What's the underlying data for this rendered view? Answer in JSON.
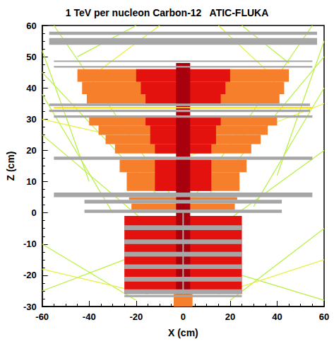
{
  "chart_data": {
    "type": "event_display",
    "title": "1 TeV per nucleon Carbon-12   ATIC-FLUKA",
    "x_label": "X (cm)",
    "y_label": "Z (cm)",
    "xlim": [
      -60,
      60
    ],
    "ylim": [
      -30,
      60
    ],
    "xticks": [
      -60,
      -40,
      -20,
      0,
      20,
      40,
      60
    ],
    "yticks": [
      -30,
      -20,
      -10,
      0,
      10,
      20,
      30,
      40,
      50,
      60
    ],
    "grid": false,
    "series": [
      {
        "type": "track",
        "color": "#b8f040",
        "segments": [
          [
            0,
            0,
            -55,
            60
          ],
          [
            0,
            0,
            55,
            60
          ],
          [
            -5,
            -10,
            -60,
            25
          ],
          [
            5,
            -10,
            60,
            20
          ],
          [
            -10,
            5,
            -60,
            45
          ],
          [
            10,
            5,
            60,
            50
          ],
          [
            -20,
            -28,
            -60,
            -10
          ],
          [
            20,
            -28,
            60,
            -5
          ],
          [
            -25,
            -15,
            -60,
            -25
          ],
          [
            25,
            -20,
            60,
            -28
          ],
          [
            -30,
            0,
            -60,
            38
          ],
          [
            30,
            2,
            60,
            40
          ],
          [
            -40,
            10,
            -60,
            52
          ],
          [
            40,
            12,
            60,
            55
          ],
          [
            -45,
            50,
            -20,
            60
          ],
          [
            45,
            48,
            25,
            60
          ]
        ]
      },
      {
        "type": "track",
        "color": "#e8f040",
        "segments": [
          [
            -2,
            20,
            -60,
            30
          ],
          [
            2,
            18,
            60,
            35
          ],
          [
            -15,
            -26,
            -60,
            -18
          ],
          [
            15,
            -26,
            60,
            -15
          ],
          [
            -35,
            46,
            -10,
            60
          ],
          [
            35,
            46,
            15,
            60
          ]
        ]
      },
      {
        "type": "rect",
        "color": "#f57f2a",
        "rects": [
          [
            -45,
            45,
            42,
            46
          ],
          [
            -43,
            43,
            38,
            42
          ],
          [
            -41,
            41,
            35,
            38
          ],
          [
            -40,
            40,
            28,
            31
          ],
          [
            -36,
            36,
            25,
            28
          ],
          [
            -33,
            33,
            22,
            25
          ],
          [
            -29,
            29,
            19,
            22
          ],
          [
            -27,
            27,
            13,
            17
          ],
          [
            -24,
            24,
            7,
            13
          ],
          [
            -23,
            23,
            4.2,
            5
          ],
          [
            -22,
            22,
            1,
            3
          ],
          [
            -4,
            4,
            -30,
            -26
          ]
        ]
      },
      {
        "type": "rect",
        "color": "#e3120f",
        "rects": [
          [
            -20,
            20,
            42,
            46
          ],
          [
            -18,
            18,
            38,
            42
          ],
          [
            -16,
            16,
            35,
            38
          ],
          [
            -16,
            16,
            28,
            31
          ],
          [
            -14,
            14,
            22,
            28
          ],
          [
            -12,
            12,
            19,
            22
          ],
          [
            -12,
            12,
            7,
            17
          ],
          [
            -25,
            25,
            -26,
            -1
          ]
        ]
      },
      {
        "type": "rect",
        "color": "#a8000c",
        "rects": [
          [
            -3,
            3,
            -26,
            48
          ]
        ]
      },
      {
        "type": "rect",
        "color": "#a6a6a6",
        "rects": [
          [
            -57,
            57,
            57,
            58
          ],
          [
            -57,
            57,
            53.8,
            56
          ],
          [
            -55,
            55,
            48.3,
            48.8
          ],
          [
            -55,
            55,
            46.5,
            47
          ],
          [
            -57,
            54,
            34.2,
            35
          ],
          [
            -57,
            54,
            32.3,
            33
          ],
          [
            -55,
            55,
            30.5,
            31.2
          ],
          [
            -55,
            55,
            17,
            18
          ],
          [
            -55,
            55,
            5,
            6.5
          ],
          [
            -42,
            42,
            3,
            4.2
          ],
          [
            -42,
            42,
            0,
            1
          ],
          [
            -25,
            25,
            -5.5,
            -4
          ],
          [
            -25,
            25,
            -10,
            -8.5
          ],
          [
            -25,
            25,
            -14,
            -12.5
          ],
          [
            -25,
            25,
            -18,
            -16.5
          ],
          [
            -25,
            25,
            -22,
            -20.5
          ],
          [
            -25,
            25,
            -26,
            -24.5
          ],
          [
            -25,
            25,
            -27,
            -26.3
          ],
          [
            -0.3,
            0.3,
            -26,
            0
          ]
        ]
      },
      {
        "type": "rect",
        "color": "#ffd800",
        "rects": [
          [
            -55,
            55,
            33.5,
            33.9
          ]
        ]
      }
    ]
  }
}
